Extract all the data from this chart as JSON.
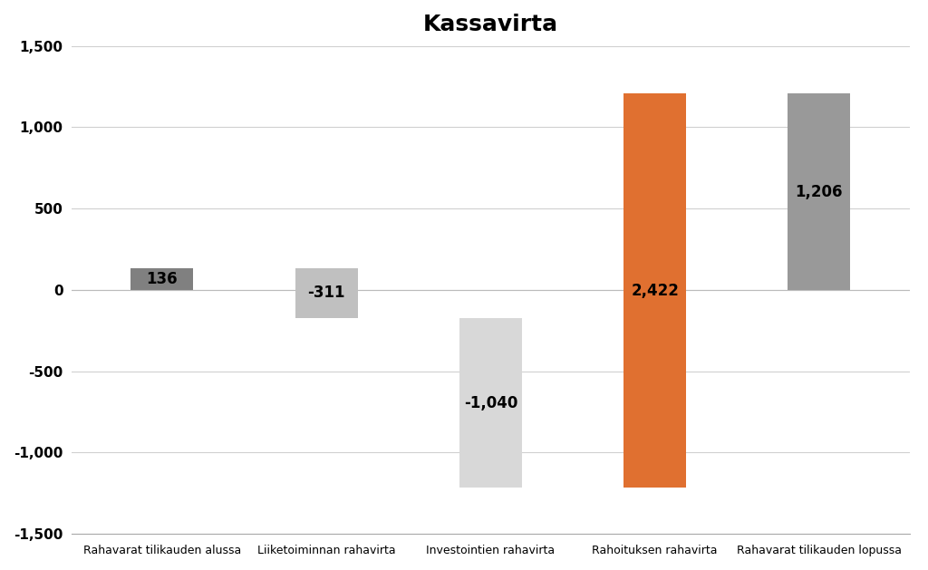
{
  "title": "Kassavirta",
  "categories": [
    "Rahavarat tilikauden alussa",
    "Liiketoiminnan rahavirta",
    "Investointien rahavirta",
    "Rahoituksen rahavirta",
    "Rahavarat tilikauden lopussa"
  ],
  "values": [
    136,
    -311,
    -1040,
    2422,
    1206
  ],
  "bar_colors": [
    "#808080",
    "#c0c0c0",
    "#d8d8d8",
    "#e07030",
    "#999999"
  ],
  "labels": [
    "136",
    "-311",
    "-1,040",
    "2,422",
    "1,206"
  ],
  "ylim": [
    -1500,
    1500
  ],
  "yticks": [
    -1500,
    -1000,
    -500,
    0,
    500,
    1000,
    1500
  ],
  "background_color": "#ffffff",
  "grid_color": "#d0d0d0",
  "title_fontsize": 18,
  "label_fontsize": 12,
  "bar_width": 0.38,
  "x_positions": [
    0,
    1,
    2,
    3,
    4
  ]
}
